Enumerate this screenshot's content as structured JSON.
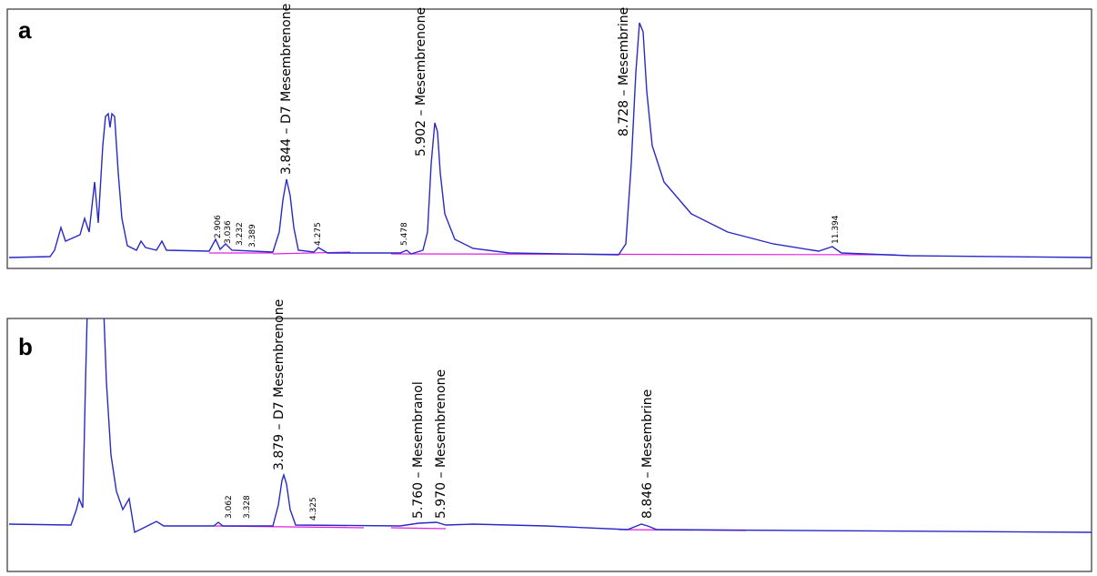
{
  "panel_a": {
    "label": "a",
    "peaks": [
      "2.906",
      "3.036",
      "3.232",
      "3.389",
      "3.844 – D7 Mesembrenone",
      "4.275",
      "5.478",
      "5.902 – Mesembrenone",
      "8.728 – Mesembrine",
      "11.394"
    ]
  },
  "panel_b": {
    "label": "b",
    "peaks": [
      "3.062",
      "3.328",
      "3.879 – D7 Mesembrenone",
      "4.325",
      "5.760 – Mesembranol",
      "5.970 – Mesembrenone",
      "8.846 – Mesembrine"
    ]
  }
}
